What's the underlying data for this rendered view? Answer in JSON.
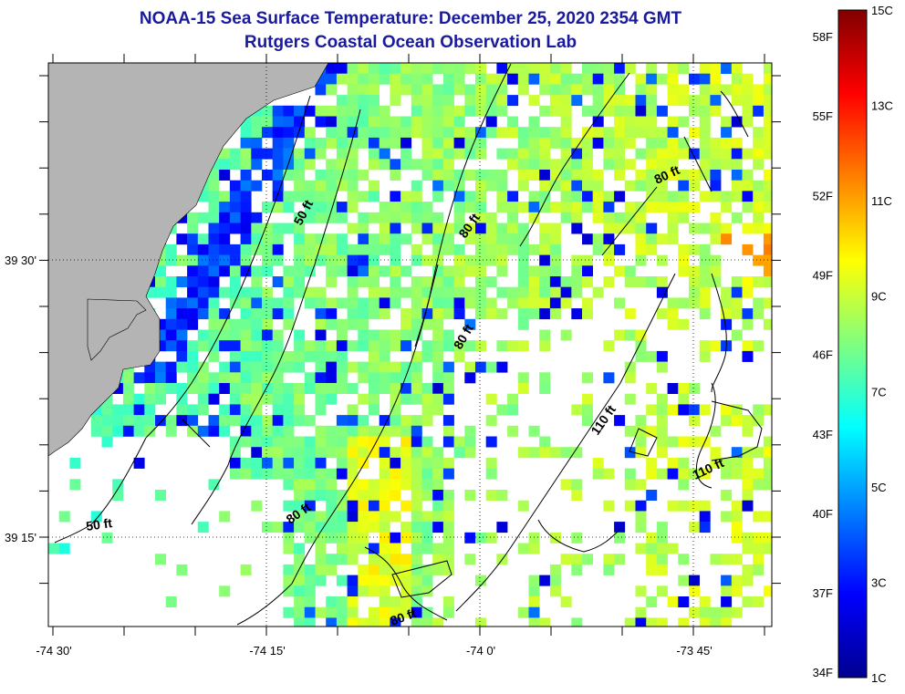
{
  "header": {
    "title": "NOAA-15 Sea Surface Temperature:  December 25, 2020 2354 GMT",
    "subtitle": "Rutgers Coastal Ocean Observation Lab"
  },
  "map": {
    "x_ticks": [
      "-74 30'",
      "-74 15'",
      "-74 0'",
      "-73 45'"
    ],
    "y_ticks": [
      "39 30'",
      "39 15'"
    ],
    "contour_labels": [
      "50 ft",
      "50 ft",
      "80 ft",
      "80 ft",
      "80 ft",
      "80 ft",
      "80 ft",
      "110 ft",
      "110 ft"
    ],
    "land_color": "#b4b4b4"
  },
  "colorbar": {
    "range_c": [
      1,
      15
    ],
    "celsius_labels": [
      "15C",
      "13C",
      "11C",
      "9C",
      "7C",
      "5C",
      "3C",
      "1C"
    ],
    "fahrenheit_labels": [
      "58F",
      "55F",
      "52F",
      "49F",
      "46F",
      "43F",
      "40F",
      "37F",
      "34F"
    ],
    "colormap": "jet"
  }
}
